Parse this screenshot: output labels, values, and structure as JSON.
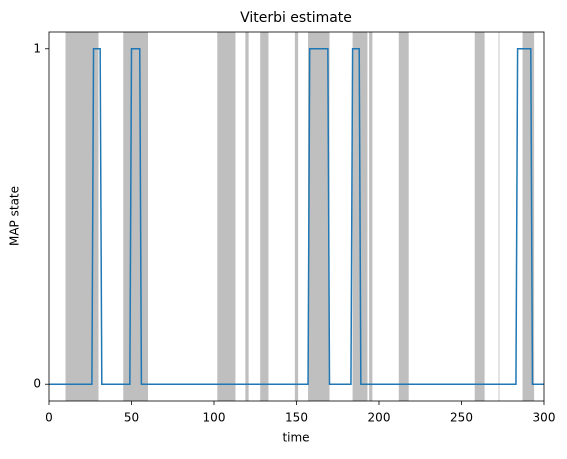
{
  "chart_data": {
    "type": "line",
    "title": "Viterbi estimate",
    "x_label": "time",
    "y_label": "MAP state",
    "x": [
      0,
      26,
      27,
      31,
      32,
      49,
      50,
      55,
      56,
      157,
      158,
      169,
      170,
      183,
      184,
      188,
      189,
      283,
      284,
      292,
      293,
      300
    ],
    "series": [
      {
        "name": "MAP state",
        "color": "#1f77b4",
        "values": [
          0,
          0,
          1,
          1,
          0,
          0,
          1,
          1,
          0,
          0,
          1,
          1,
          0,
          0,
          1,
          1,
          0,
          0,
          1,
          1,
          0,
          0
        ]
      }
    ],
    "shaded_spans": [
      [
        10,
        30
      ],
      [
        45,
        60
      ],
      [
        102,
        113
      ],
      [
        119,
        121
      ],
      [
        128,
        133
      ],
      [
        149,
        151
      ],
      [
        157,
        170
      ],
      [
        184,
        193
      ],
      [
        194,
        196
      ],
      [
        212,
        218
      ],
      [
        258,
        264
      ],
      [
        272.5,
        273
      ],
      [
        287,
        294
      ]
    ],
    "shade_color": "#bfbfbf",
    "xlim": [
      0,
      300
    ],
    "xticks": [
      0,
      50,
      100,
      150,
      200,
      250,
      300
    ],
    "ylim": [
      -0.05,
      1.05
    ],
    "yticks": [
      0,
      1
    ]
  }
}
